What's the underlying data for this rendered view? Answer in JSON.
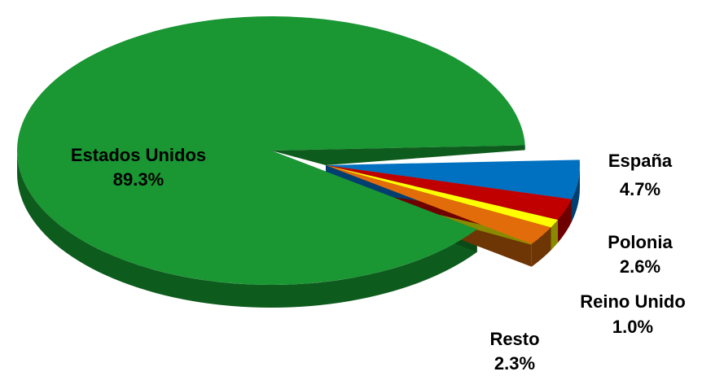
{
  "chart_data": {
    "type": "pie",
    "title": "",
    "slices": [
      {
        "label": "Estados Unidos",
        "value": 89.3,
        "value_label": "89.3%",
        "color": "#1a9633",
        "side_color": "#0e5c1d",
        "exploded": false
      },
      {
        "label": "España",
        "value": 4.7,
        "value_label": "4.7%",
        "color": "#0070c0",
        "side_color": "#003f70",
        "exploded": true
      },
      {
        "label": "Polonia",
        "value": 2.6,
        "value_label": "2.6%",
        "color": "#c00000",
        "side_color": "#6e0000",
        "exploded": true
      },
      {
        "label": "Reino Unido",
        "value": 1.0,
        "value_label": "1.0%",
        "color": "#ffff00",
        "side_color": "#8a8a00",
        "exploded": true
      },
      {
        "label": "Resto",
        "value": 2.3,
        "value_label": "2.3%",
        "color": "#e36c0a",
        "side_color": "#6e3505",
        "exploded": true
      }
    ],
    "style": "3d-exploded"
  }
}
